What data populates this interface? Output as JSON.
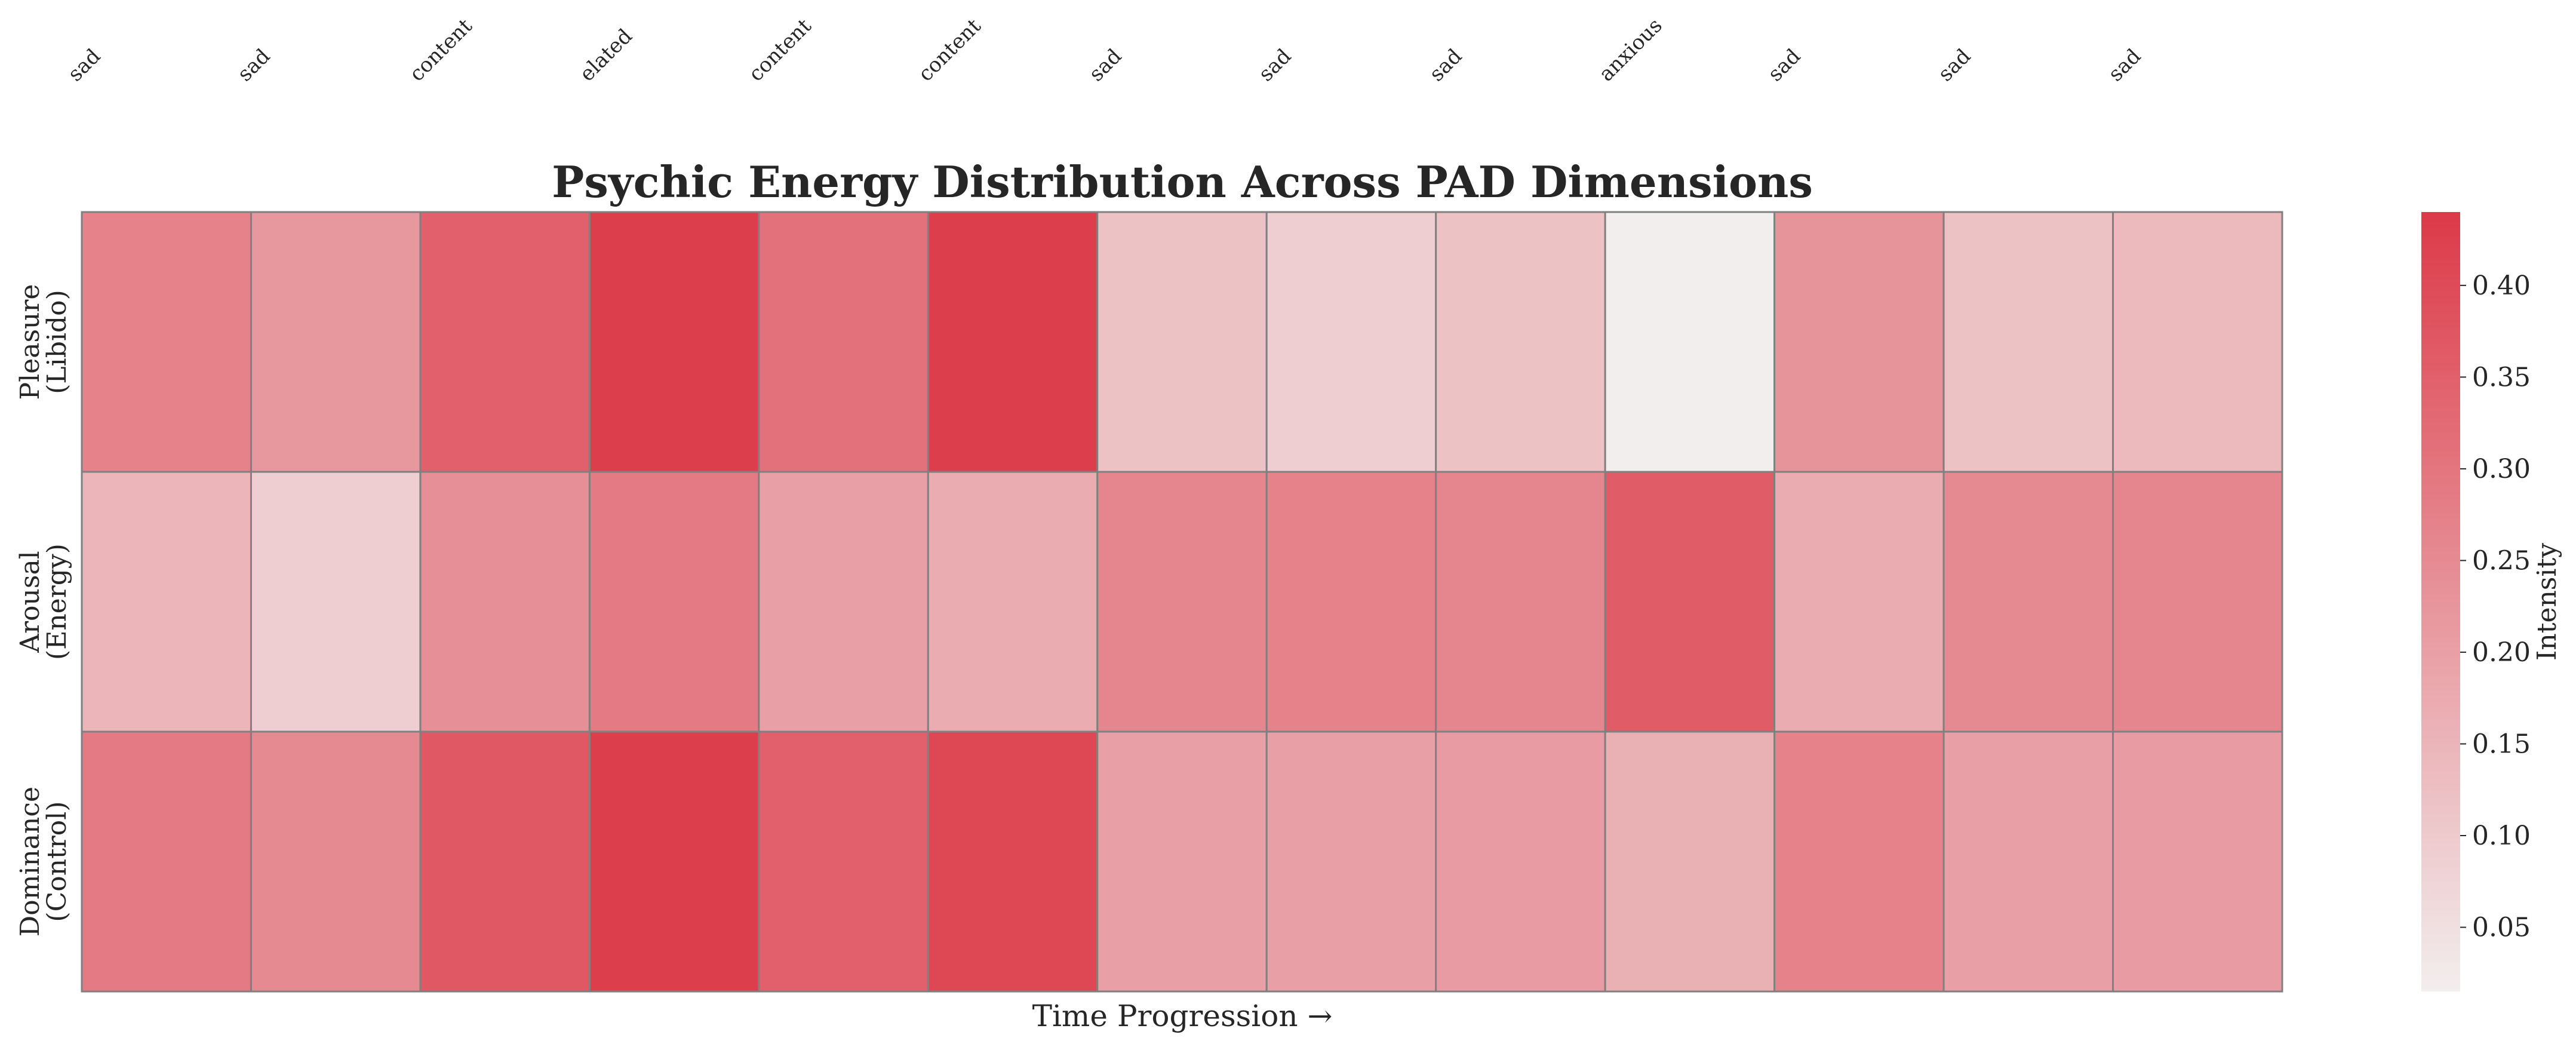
{
  "chart_data": {
    "type": "heatmap",
    "title": "Psychic Energy Distribution Across PAD Dimensions",
    "xlabel": "Time Progression →",
    "ylabel": "",
    "top_labels": [
      "sad",
      "sad",
      "content",
      "elated",
      "content",
      "content",
      "sad",
      "sad",
      "sad",
      "anxious",
      "sad",
      "sad",
      "sad"
    ],
    "rows": [
      [
        "Pleasure",
        "(Libido)"
      ],
      [
        "Arousal",
        "(Energy)"
      ],
      [
        "Dominance",
        "(Control)"
      ]
    ],
    "values": [
      [
        0.27,
        0.22,
        0.35,
        0.43,
        0.31,
        0.43,
        0.12,
        0.09,
        0.12,
        0.015,
        0.23,
        0.12,
        0.14
      ],
      [
        0.15,
        0.09,
        0.24,
        0.29,
        0.2,
        0.17,
        0.26,
        0.27,
        0.26,
        0.36,
        0.17,
        0.25,
        0.26
      ],
      [
        0.29,
        0.25,
        0.37,
        0.43,
        0.35,
        0.41,
        0.2,
        0.2,
        0.21,
        0.16,
        0.27,
        0.2,
        0.21
      ]
    ],
    "colorbar": {
      "label": "Intensity",
      "range": [
        0.015,
        0.44
      ],
      "ticks": [
        "0.05",
        "0.10",
        "0.15",
        "0.20",
        "0.25",
        "0.30",
        "0.35",
        "0.40"
      ],
      "color_low": "#f2eeee",
      "color_high": "#dc3a48"
    },
    "grid_color": "#808080"
  }
}
